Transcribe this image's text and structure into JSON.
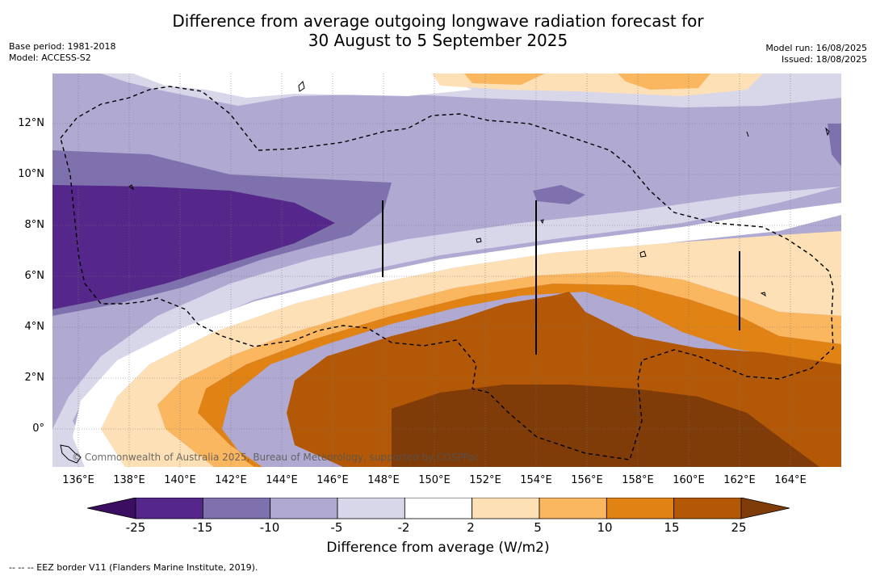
{
  "title": {
    "line1": "Difference from average outgoing longwave radiation forecast for",
    "line2": "30 August to 5 September 2025"
  },
  "meta_left": {
    "base_period": "Base period: 1981-2018",
    "model": "Model: ACCESS-S2"
  },
  "meta_right": {
    "model_run": "Model run: 16/08/2025",
    "issued": "Issued: 18/08/2025"
  },
  "lat_labels": [
    "12°N",
    "10°N",
    "8°N",
    "6°N",
    "4°N",
    "2°N",
    "0°"
  ],
  "lon_labels": [
    "136°E",
    "138°E",
    "140°E",
    "142°E",
    "144°E",
    "146°E",
    "148°E",
    "150°E",
    "152°E",
    "154°E",
    "156°E",
    "158°E",
    "160°E",
    "162°E",
    "164°E"
  ],
  "copyright": "© Commonwealth of Australia 2025, Bureau of Meteorology, supported by COSPPac",
  "colorbar": {
    "title": "Difference from average (W/m2)",
    "ticks": [
      "-25",
      "-15",
      "-10",
      "-5",
      "-2",
      "2",
      "5",
      "10",
      "15",
      "25"
    ],
    "colors": [
      "#3b0e61",
      "#55278b",
      "#7f71ad",
      "#b0a9d1",
      "#d8d7ea",
      "#ffffff",
      "#fee0b6",
      "#fbb660",
      "#e08214",
      "#b35806",
      "#7f3b08"
    ]
  },
  "footer": "--  --  -- EEZ border V11 (Flanders Marine Institute, 2019)."
}
